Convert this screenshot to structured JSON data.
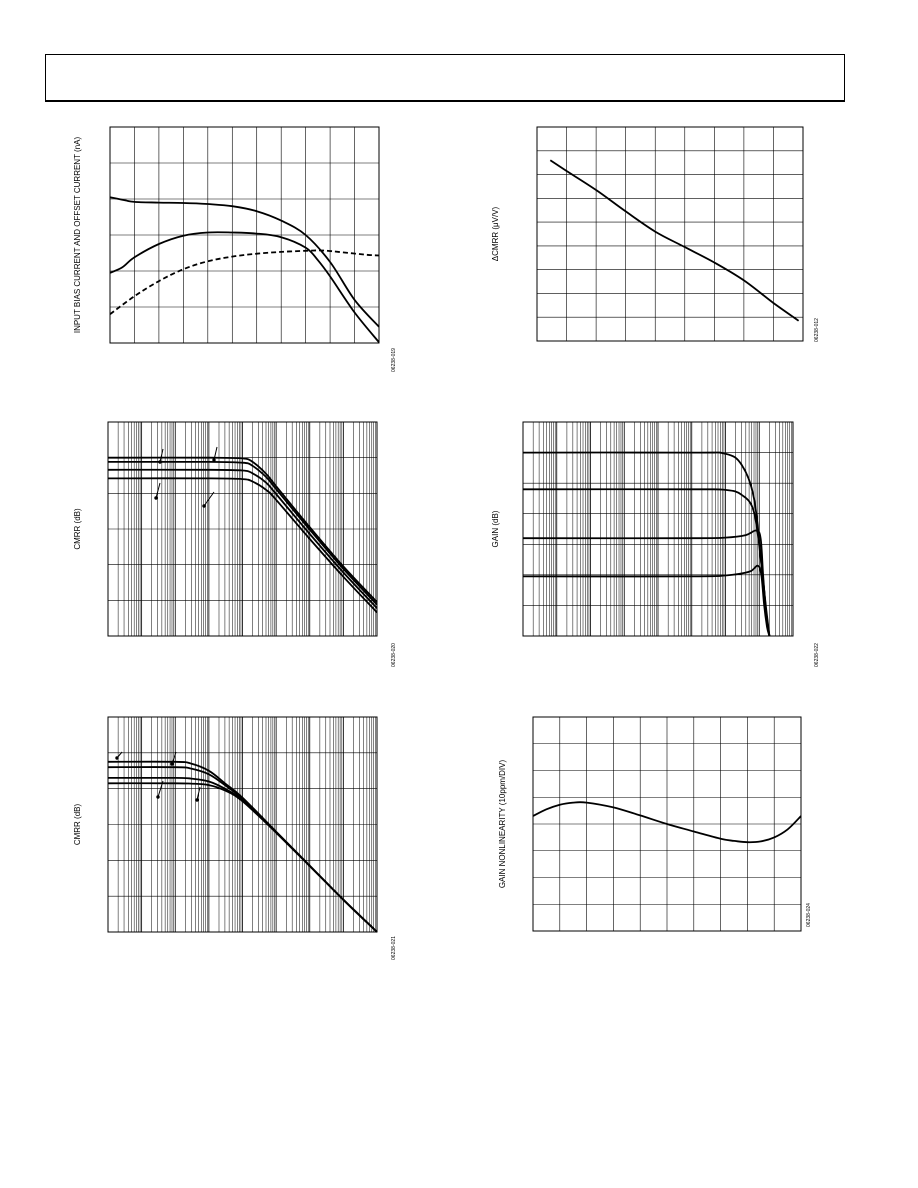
{
  "page": {
    "colors": {
      "ink": "#000000",
      "paper": "#ffffff"
    }
  },
  "chart_data": [
    {
      "id": "c1",
      "type": "line",
      "title": "",
      "xlabel": "",
      "ylabel": "INPUT BIAS CURRENT AND OFFSET CURRENT (nA)",
      "fig_id": "06238-019",
      "xscale": "linear",
      "grid": true,
      "xlim": [
        0,
        11
      ],
      "ylim": [
        0,
        6
      ],
      "series": [
        {
          "style": "solid",
          "x": [
            0,
            0.5,
            1,
            2,
            3,
            4,
            5,
            6,
            7,
            8,
            9,
            10,
            11
          ],
          "y": [
            4.05,
            3.98,
            3.92,
            3.9,
            3.89,
            3.86,
            3.8,
            3.66,
            3.4,
            3.0,
            2.25,
            1.2,
            0.45
          ]
        },
        {
          "style": "solid",
          "x": [
            0,
            0.5,
            1,
            2,
            3,
            4,
            5,
            6,
            7,
            8,
            8.5,
            9,
            10,
            11
          ],
          "y": [
            1.95,
            2.1,
            2.38,
            2.75,
            2.98,
            3.07,
            3.07,
            3.04,
            2.94,
            2.65,
            2.3,
            1.85,
            0.85,
            0.02
          ]
        },
        {
          "style": "dashed",
          "x": [
            0,
            1,
            2,
            3,
            4,
            5,
            6,
            7,
            8,
            8.7,
            9.5,
            10.5,
            11
          ],
          "y": [
            0.8,
            1.3,
            1.72,
            2.05,
            2.27,
            2.4,
            2.48,
            2.53,
            2.56,
            2.57,
            2.52,
            2.45,
            2.43
          ]
        }
      ]
    },
    {
      "id": "c2",
      "type": "line",
      "title": "",
      "xlabel": "",
      "ylabel": "ΔCMRR (μV/V)",
      "fig_id": "06238-012",
      "xscale": "linear",
      "grid": true,
      "xlim": [
        0,
        9
      ],
      "ylim": [
        0,
        9
      ],
      "series": [
        {
          "style": "solid",
          "x": [
            0.45,
            1,
            2,
            3,
            4,
            5,
            6,
            7,
            8,
            8.85
          ],
          "y": [
            7.6,
            7.15,
            6.35,
            5.45,
            4.6,
            3.95,
            3.3,
            2.55,
            1.6,
            0.85
          ]
        }
      ]
    },
    {
      "id": "c3",
      "type": "line",
      "title": "",
      "xlabel": "",
      "ylabel": "CMRR (dB)",
      "fig_id": "06238-020",
      "xscale": "log",
      "grid": true,
      "xlim": [
        1,
        100000000
      ],
      "ylim": [
        0,
        6
      ],
      "series": [
        {
          "style": "solid",
          "x": [
            1,
            1000,
            10000,
            20000,
            50000,
            100000,
            1000000,
            10000000,
            100000000
          ],
          "y": [
            5.0,
            5.0,
            4.98,
            4.88,
            4.55,
            4.2,
            3.05,
            1.95,
            0.95
          ]
        },
        {
          "style": "solid",
          "x": [
            1,
            1000,
            10000,
            20000,
            50000,
            100000,
            1000000,
            10000000,
            100000000
          ],
          "y": [
            4.88,
            4.88,
            4.86,
            4.77,
            4.46,
            4.12,
            2.98,
            1.88,
            0.88
          ]
        },
        {
          "style": "solid",
          "x": [
            1,
            1000,
            10000,
            20000,
            50000,
            100000,
            1000000,
            10000000,
            100000000
          ],
          "y": [
            4.66,
            4.66,
            4.64,
            4.56,
            4.3,
            3.98,
            2.86,
            1.78,
            0.78
          ]
        },
        {
          "style": "solid",
          "x": [
            1,
            1000,
            10000,
            20000,
            50000,
            100000,
            1000000,
            10000000,
            100000000
          ],
          "y": [
            4.42,
            4.42,
            4.4,
            4.33,
            4.1,
            3.82,
            2.72,
            1.66,
            0.66
          ]
        }
      ]
    },
    {
      "id": "c4",
      "type": "line",
      "title": "",
      "xlabel": "",
      "ylabel": "GAIN (dB)",
      "fig_id": "06238-022",
      "xscale": "log",
      "grid": true,
      "xlim": [
        1,
        100000000
      ],
      "ylim": [
        0,
        7
      ],
      "series": [
        {
          "style": "solid",
          "x": [
            1,
            100000,
            1000000,
            3000000,
            7000000,
            12000000,
            16000000,
            20000000
          ],
          "y": [
            6.0,
            6.0,
            5.96,
            5.6,
            4.5,
            2.2,
            0.9,
            0.0
          ]
        },
        {
          "style": "solid",
          "x": [
            1,
            100000,
            1000000,
            3000000,
            7000000,
            12000000,
            16000000,
            20000000
          ],
          "y": [
            4.8,
            4.8,
            4.78,
            4.62,
            4.05,
            2.2,
            0.8,
            0.0
          ]
        },
        {
          "style": "solid",
          "x": [
            1,
            100000,
            1000000,
            4000000,
            8000000,
            11000000,
            13000000,
            16000000,
            20000000
          ],
          "y": [
            3.2,
            3.2,
            3.22,
            3.3,
            3.45,
            3.2,
            2.0,
            0.7,
            0.0
          ]
        },
        {
          "style": "solid",
          "x": [
            1,
            100000,
            1000000,
            5000000,
            9000000,
            11500000,
            14000000,
            17000000,
            20000000
          ],
          "y": [
            1.95,
            1.95,
            1.98,
            2.1,
            2.3,
            2.0,
            1.0,
            0.3,
            0.0
          ]
        }
      ]
    },
    {
      "id": "c5",
      "type": "line",
      "title": "",
      "xlabel": "",
      "ylabel": "CMRR (dB)",
      "fig_id": "06238-021",
      "xscale": "log",
      "grid": true,
      "xlim": [
        1,
        100000000
      ],
      "ylim": [
        0,
        6
      ],
      "series": [
        {
          "style": "solid",
          "x": [
            1,
            100,
            300,
            1000,
            3000,
            10000,
            100000,
            1000000,
            10000000,
            100000000
          ],
          "y": [
            4.75,
            4.75,
            4.7,
            4.5,
            4.15,
            3.75,
            2.8,
            1.85,
            0.9,
            0.0
          ]
        },
        {
          "style": "solid",
          "x": [
            1,
            100,
            300,
            1000,
            3000,
            10000,
            100000,
            1000000,
            10000000,
            100000000
          ],
          "y": [
            4.6,
            4.6,
            4.56,
            4.4,
            4.1,
            3.72,
            2.8,
            1.85,
            0.9,
            0.0
          ]
        },
        {
          "style": "solid",
          "x": [
            1,
            100,
            300,
            1000,
            3000,
            10000,
            100000,
            1000000,
            10000000,
            100000000
          ],
          "y": [
            4.3,
            4.3,
            4.28,
            4.2,
            4.0,
            3.68,
            2.78,
            1.84,
            0.9,
            0.0
          ]
        },
        {
          "style": "solid",
          "x": [
            1,
            100,
            300,
            1000,
            3000,
            10000,
            100000,
            1000000,
            10000000,
            100000000
          ],
          "y": [
            4.15,
            4.15,
            4.14,
            4.1,
            3.95,
            3.65,
            2.77,
            1.84,
            0.9,
            0.0
          ]
        }
      ]
    },
    {
      "id": "c6",
      "type": "line",
      "title": "",
      "xlabel": "",
      "ylabel": "GAIN NONLINEARITY (10ppm/DIV)",
      "fig_id": "06238-024",
      "xscale": "linear",
      "grid": true,
      "xlim": [
        0,
        10
      ],
      "ylim": [
        0,
        8
      ],
      "series": [
        {
          "style": "solid",
          "x": [
            0,
            0.5,
            1,
            1.5,
            2,
            3,
            4,
            5,
            6,
            7,
            7.5,
            8,
            8.5,
            9,
            9.5,
            10
          ],
          "y": [
            4.3,
            4.55,
            4.72,
            4.8,
            4.8,
            4.62,
            4.32,
            4.0,
            3.72,
            3.45,
            3.37,
            3.32,
            3.35,
            3.5,
            3.8,
            4.3
          ]
        }
      ]
    }
  ]
}
